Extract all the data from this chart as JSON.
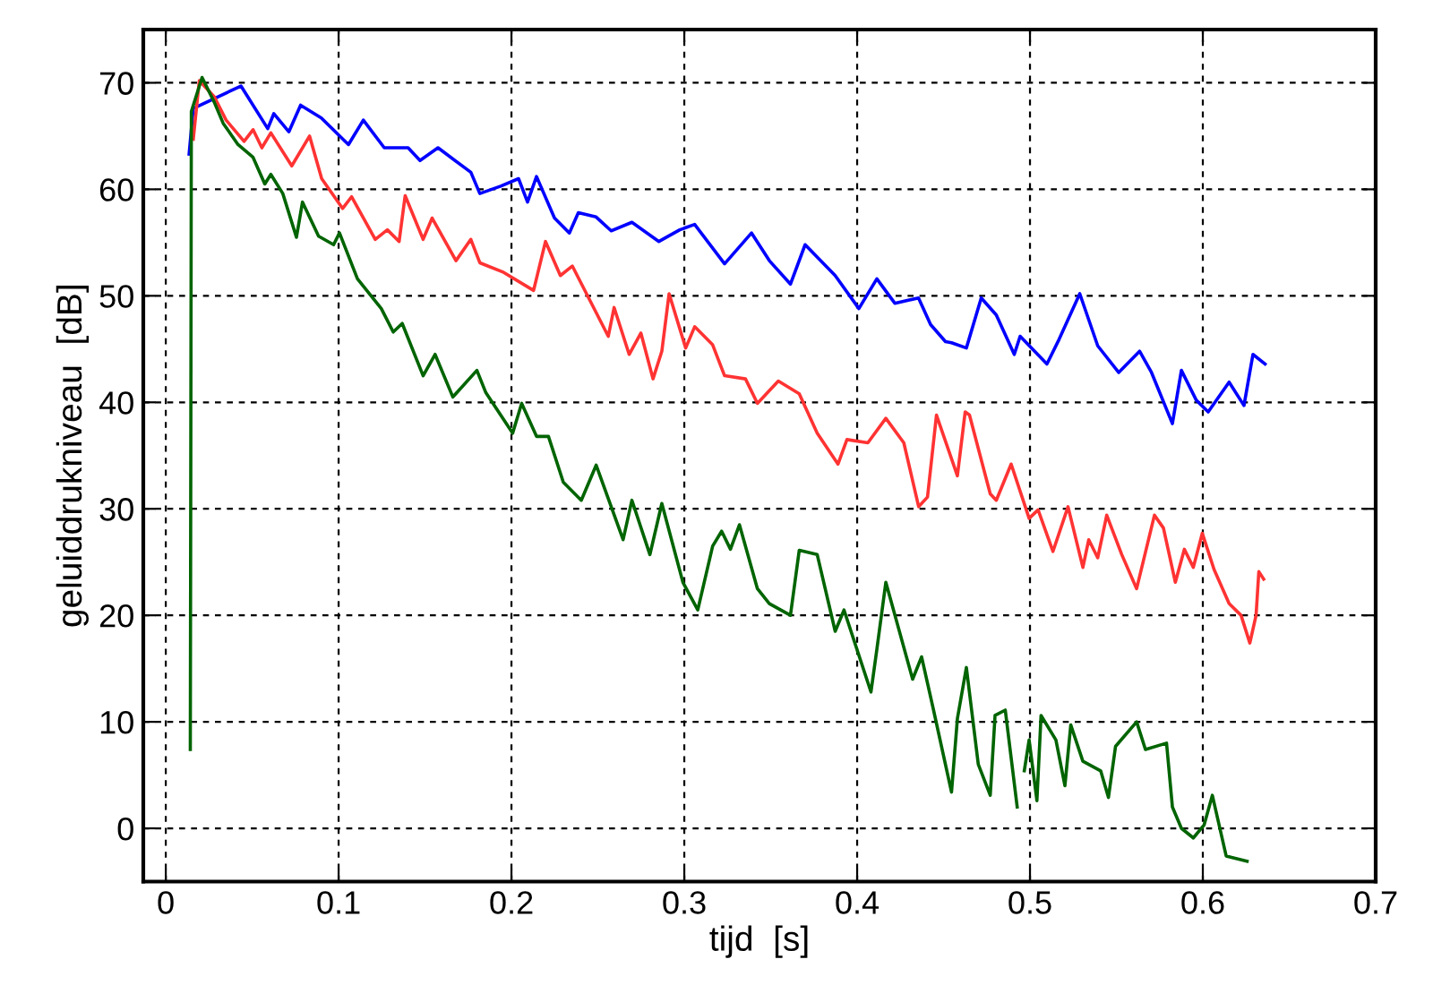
{
  "chart_data": {
    "type": "line",
    "xlabel": "tijd  [s]",
    "ylabel": "geluiddrukniveau  [dB]",
    "xlim": [
      -0.013,
      0.7
    ],
    "ylim": [
      -5,
      75
    ],
    "xticks": [
      0,
      0.1,
      0.2,
      0.3,
      0.4,
      0.5,
      0.6,
      0.7
    ],
    "yticks": [
      0,
      10,
      20,
      30,
      40,
      50,
      60,
      70
    ],
    "grid": true,
    "line_style": "solid",
    "marker": "none",
    "series": [
      {
        "color": "#0000ff",
        "x": [
          0.0135,
          0.0159,
          0.0435,
          0.059,
          0.0625,
          0.0712,
          0.078,
          0.09,
          0.1057,
          0.1143,
          0.1264,
          0.1402,
          0.1471,
          0.1575,
          0.1765,
          0.1817,
          0.1938,
          0.2041,
          0.2093,
          0.2145,
          0.2249,
          0.2335,
          0.2387,
          0.249,
          0.2577,
          0.2697,
          0.2853,
          0.2974,
          0.306,
          0.3233,
          0.3389,
          0.3492,
          0.3614,
          0.3699,
          0.3873,
          0.401,
          0.4114,
          0.4218,
          0.4355,
          0.4425,
          0.4511,
          0.4546,
          0.4632,
          0.4718,
          0.4805,
          0.4909,
          0.4943,
          0.5098,
          0.5168,
          0.5288,
          0.5392,
          0.5513,
          0.5634,
          0.5703,
          0.5824,
          0.5876,
          0.5962,
          0.6031,
          0.6152,
          0.6238,
          0.629,
          0.636
        ],
        "values": [
          63.3,
          67.6,
          69.7,
          65.7,
          67.1,
          65.4,
          67.9,
          66.7,
          64.2,
          66.5,
          63.9,
          63.9,
          62.7,
          63.9,
          61.6,
          59.6,
          60.3,
          61.0,
          58.8,
          61.2,
          57.3,
          55.9,
          57.8,
          57.4,
          56.1,
          56.9,
          55.1,
          56.2,
          56.7,
          53.0,
          55.9,
          53.3,
          51.1,
          54.8,
          51.9,
          48.8,
          51.6,
          49.3,
          49.8,
          47.3,
          45.7,
          45.6,
          45.1,
          49.8,
          48.2,
          44.5,
          46.2,
          43.6,
          45.9,
          50.2,
          45.3,
          42.8,
          44.8,
          42.8,
          38.0,
          43.0,
          40.2,
          39.1,
          41.9,
          39.7,
          44.5,
          43.6
        ]
      },
      {
        "color": "#ff3333",
        "x": [
          0.0159,
          0.0194,
          0.028,
          0.0349,
          0.0453,
          0.0505,
          0.0556,
          0.0608,
          0.0729,
          0.0832,
          0.0902,
          0.1023,
          0.1075,
          0.1212,
          0.1282,
          0.135,
          0.1385,
          0.1489,
          0.1541,
          0.1679,
          0.1765,
          0.1817,
          0.1955,
          0.2128,
          0.2197,
          0.2283,
          0.2352,
          0.256,
          0.2594,
          0.2681,
          0.2749,
          0.2819,
          0.287,
          0.2912,
          0.3008,
          0.306,
          0.3164,
          0.3233,
          0.3354,
          0.3423,
          0.3544,
          0.3665,
          0.3769,
          0.3889,
          0.3941,
          0.4062,
          0.4166,
          0.427,
          0.4356,
          0.4407,
          0.4459,
          0.458,
          0.4625,
          0.465,
          0.477,
          0.4805,
          0.4891,
          0.4995,
          0.5047,
          0.5133,
          0.522,
          0.5306,
          0.534,
          0.5392,
          0.5444,
          0.5531,
          0.5617,
          0.572,
          0.5772,
          0.5841,
          0.5893,
          0.5945,
          0.5997,
          0.6065,
          0.6152,
          0.6221,
          0.6272,
          0.6308,
          0.6324,
          0.6352
        ],
        "values": [
          64.7,
          70.2,
          68.7,
          66.5,
          64.5,
          65.6,
          63.9,
          65.3,
          62.2,
          65.0,
          61.0,
          58.2,
          59.3,
          55.3,
          56.2,
          55.1,
          59.4,
          55.3,
          57.3,
          53.3,
          55.3,
          53.1,
          52.2,
          50.5,
          55.1,
          51.9,
          52.8,
          46.2,
          48.9,
          44.5,
          46.5,
          42.2,
          44.8,
          50.2,
          45.1,
          47.1,
          45.4,
          42.5,
          42.2,
          39.9,
          42.0,
          40.8,
          37.1,
          34.2,
          36.5,
          36.2,
          38.5,
          36.2,
          30.2,
          31.1,
          38.8,
          33.1,
          39.1,
          38.8,
          31.4,
          30.8,
          34.2,
          29.1,
          29.9,
          26.0,
          30.2,
          24.5,
          27.1,
          25.4,
          29.4,
          25.7,
          22.5,
          29.4,
          28.2,
          23.1,
          26.2,
          24.5,
          27.7,
          24.3,
          21.1,
          20.0,
          17.4,
          20.0,
          24.1,
          23.4
        ]
      },
      {
        "color": "#006400",
        "x": [
          0.0142,
          0.0148,
          0.021,
          0.028,
          0.0332,
          0.0418,
          0.0505,
          0.0573,
          0.0608,
          0.0677,
          0.0756,
          0.0791,
          0.0884,
          0.0971,
          0.1005,
          0.1109,
          0.1247,
          0.1316,
          0.1368,
          0.1489,
          0.1558,
          0.1661,
          0.18,
          0.1852,
          0.2007,
          0.2059,
          0.2145,
          0.2214,
          0.23,
          0.2404,
          0.249,
          0.2646,
          0.2697,
          0.2801,
          0.287,
          0.2992,
          0.3078,
          0.3164,
          0.3216,
          0.3267,
          0.3319,
          0.3423,
          0.3492,
          0.3614,
          0.3665,
          0.3769,
          0.3873,
          0.3924,
          0.408,
          0.4114,
          0.4166,
          0.4321,
          0.4373,
          0.4442,
          0.4546,
          0.458,
          0.4632,
          0.4701,
          0.477,
          0.4798,
          0.4857,
          0.4926,
          0.4943,
          0.4967,
          0.4995,
          0.504,
          0.5064,
          0.515,
          0.5202,
          0.5236,
          0.5306,
          0.5409,
          0.5454,
          0.5495,
          0.5617,
          0.5668,
          0.579,
          0.5824,
          0.5876,
          0.5945,
          0.6007,
          0.6055,
          0.6135,
          0.6256
        ],
        "values": [
          7.4,
          67.3,
          70.5,
          68.2,
          66.2,
          64.2,
          63.0,
          60.5,
          61.4,
          59.6,
          55.5,
          58.8,
          55.6,
          54.8,
          55.9,
          51.6,
          48.8,
          46.6,
          47.4,
          42.5,
          44.5,
          40.5,
          43.0,
          40.9,
          37.1,
          39.9,
          36.8,
          36.8,
          32.5,
          30.8,
          34.1,
          27.1,
          30.8,
          25.7,
          30.5,
          23.1,
          20.5,
          26.5,
          27.9,
          26.2,
          28.5,
          22.5,
          21.1,
          20.0,
          26.1,
          25.7,
          18.5,
          20.5,
          12.8,
          16.8,
          23.1,
          14.0,
          16.1,
          11.1,
          3.4,
          10.3,
          15.1,
          6.0,
          3.1,
          10.6,
          11.1,
          2.0,
          null,
          5.4,
          8.3,
          2.6,
          10.6,
          8.3,
          4.0,
          9.7,
          6.3,
          5.4,
          2.9,
          7.7,
          10.0,
          7.4,
          8.0,
          2.0,
          0,
          -0.9,
          0.3,
          3.1,
          -2.6,
          -3.1
        ]
      }
    ]
  }
}
